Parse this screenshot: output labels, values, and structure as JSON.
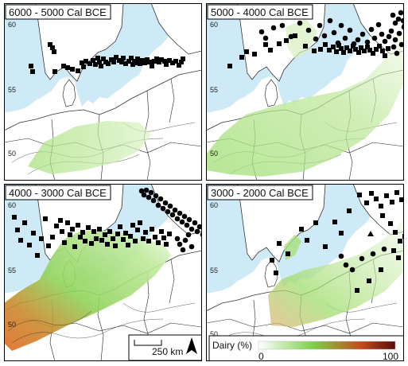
{
  "panels": [
    {
      "id": "p1",
      "period": "6000 - 5000 Cal BCE",
      "lat_labels": [
        "60",
        "55",
        "50"
      ],
      "squares": [
        [
          34,
          79
        ],
        [
          36,
          86
        ],
        [
          58,
          52
        ],
        [
          61,
          56
        ],
        [
          63,
          61
        ],
        [
          64,
          86
        ],
        [
          75,
          79
        ],
        [
          80,
          81
        ],
        [
          86,
          83
        ],
        [
          93,
          85
        ],
        [
          98,
          75
        ],
        [
          100,
          80
        ],
        [
          103,
          73
        ],
        [
          108,
          76
        ],
        [
          112,
          72
        ],
        [
          115,
          77
        ],
        [
          118,
          69
        ],
        [
          120,
          74
        ],
        [
          122,
          79
        ],
        [
          125,
          70
        ],
        [
          128,
          74
        ],
        [
          131,
          76
        ],
        [
          135,
          71
        ],
        [
          138,
          74
        ],
        [
          141,
          68
        ],
        [
          145,
          72
        ],
        [
          148,
          74
        ],
        [
          150,
          69
        ],
        [
          153,
          76
        ],
        [
          157,
          73
        ],
        [
          160,
          69
        ],
        [
          162,
          77
        ],
        [
          164,
          73
        ],
        [
          166,
          75
        ],
        [
          168,
          70
        ],
        [
          171,
          76
        ],
        [
          174,
          72
        ],
        [
          177,
          75
        ],
        [
          180,
          71
        ],
        [
          183,
          74
        ],
        [
          186,
          79
        ],
        [
          189,
          73
        ],
        [
          192,
          70
        ],
        [
          195,
          74
        ],
        [
          198,
          71
        ],
        [
          202,
          73
        ],
        [
          204,
          77
        ],
        [
          208,
          72
        ],
        [
          212,
          75
        ],
        [
          216,
          73
        ],
        [
          220,
          78
        ],
        [
          223,
          74
        ],
        [
          225,
          70
        ]
      ],
      "circles": [],
      "triangles": []
    },
    {
      "id": "p2",
      "period": "5000 - 4000 Cal BCE",
      "lat_labels": [
        "60",
        "55",
        "50"
      ],
      "squares": [
        [
          30,
          79
        ],
        [
          45,
          68
        ],
        [
          51,
          61
        ],
        [
          61,
          64
        ],
        [
          75,
          52
        ],
        [
          81,
          59
        ],
        [
          92,
          51
        ],
        [
          101,
          47
        ],
        [
          112,
          41
        ],
        [
          125,
          54
        ],
        [
          136,
          60
        ],
        [
          144,
          58
        ],
        [
          150,
          52
        ],
        [
          155,
          59
        ],
        [
          160,
          55
        ],
        [
          164,
          61
        ],
        [
          167,
          53
        ],
        [
          170,
          57
        ],
        [
          173,
          62
        ],
        [
          177,
          56
        ],
        [
          181,
          60
        ],
        [
          185,
          54
        ],
        [
          188,
          58
        ],
        [
          192,
          62
        ],
        [
          195,
          56
        ],
        [
          199,
          60
        ],
        [
          203,
          55
        ],
        [
          206,
          59
        ],
        [
          210,
          63
        ],
        [
          214,
          58
        ],
        [
          218,
          54
        ],
        [
          222,
          60
        ],
        [
          225,
          66
        ],
        [
          229,
          57
        ]
      ],
      "circles": [
        [
          70,
          36
        ],
        [
          75,
          44
        ],
        [
          85,
          31
        ],
        [
          96,
          28
        ],
        [
          107,
          42
        ],
        [
          118,
          25
        ],
        [
          129,
          34
        ],
        [
          138,
          45
        ],
        [
          143,
          28
        ],
        [
          149,
          41
        ],
        [
          156,
          22
        ],
        [
          161,
          37
        ],
        [
          166,
          50
        ],
        [
          170,
          28
        ],
        [
          175,
          44
        ],
        [
          181,
          34
        ],
        [
          186,
          51
        ],
        [
          191,
          46
        ],
        [
          197,
          39
        ],
        [
          203,
          49
        ],
        [
          208,
          33
        ],
        [
          212,
          44
        ],
        [
          217,
          27
        ],
        [
          221,
          39
        ],
        [
          225,
          48
        ],
        [
          230,
          42
        ],
        [
          233,
          35
        ],
        [
          236,
          55
        ],
        [
          238,
          46
        ],
        [
          240,
          63
        ],
        [
          243,
          38
        ],
        [
          246,
          52
        ],
        [
          249,
          30
        ],
        [
          235,
          15
        ],
        [
          238,
          25
        ],
        [
          242,
          20
        ],
        [
          245,
          12
        ],
        [
          248,
          22
        ],
        [
          250,
          28
        ]
      ],
      "triangles": []
    },
    {
      "id": "p3",
      "period": "4000 - 3000 Cal BCE",
      "lat_labels": [
        "60",
        "55",
        "50"
      ],
      "squares": [
        [
          13,
          42
        ],
        [
          17,
          58
        ],
        [
          21,
          71
        ],
        [
          26,
          49
        ],
        [
          32,
          77
        ],
        [
          37,
          62
        ],
        [
          42,
          90
        ],
        [
          47,
          69
        ],
        [
          52,
          44
        ],
        [
          56,
          78
        ],
        [
          61,
          67
        ],
        [
          66,
          53
        ],
        [
          71,
          46
        ],
        [
          73,
          60
        ],
        [
          76,
          74
        ],
        [
          80,
          49
        ],
        [
          83,
          64
        ],
        [
          86,
          57
        ],
        [
          89,
          79
        ],
        [
          93,
          52
        ],
        [
          96,
          67
        ],
        [
          99,
          61
        ],
        [
          102,
          72
        ],
        [
          106,
          55
        ],
        [
          110,
          75
        ],
        [
          113,
          60
        ],
        [
          116,
          69
        ],
        [
          120,
          57
        ],
        [
          123,
          71
        ],
        [
          127,
          64
        ],
        [
          130,
          76
        ],
        [
          133,
          60
        ],
        [
          137,
          69
        ],
        [
          140,
          78
        ],
        [
          143,
          63
        ],
        [
          146,
          54
        ],
        [
          150,
          70
        ],
        [
          153,
          62
        ],
        [
          156,
          77
        ],
        [
          159,
          66
        ],
        [
          162,
          52
        ],
        [
          165,
          72
        ],
        [
          168,
          58
        ],
        [
          171,
          49
        ],
        [
          175,
          69
        ],
        [
          178,
          61
        ],
        [
          182,
          72
        ],
        [
          186,
          57
        ],
        [
          190,
          67
        ],
        [
          194,
          74
        ],
        [
          198,
          60
        ],
        [
          201,
          68
        ],
        [
          204,
          76
        ],
        [
          208,
          63
        ]
      ],
      "circles": [
        [
          173,
          9
        ],
        [
          176,
          14
        ],
        [
          179,
          8
        ],
        [
          182,
          17
        ],
        [
          185,
          11
        ],
        [
          188,
          21
        ],
        [
          191,
          15
        ],
        [
          194,
          27
        ],
        [
          197,
          19
        ],
        [
          200,
          31
        ],
        [
          203,
          24
        ],
        [
          206,
          35
        ],
        [
          209,
          28
        ],
        [
          212,
          39
        ],
        [
          215,
          33
        ],
        [
          218,
          44
        ],
        [
          221,
          37
        ],
        [
          224,
          48
        ],
        [
          227,
          41
        ],
        [
          230,
          52
        ],
        [
          233,
          45
        ],
        [
          236,
          57
        ],
        [
          240,
          49
        ],
        [
          243,
          60
        ],
        [
          246,
          54
        ],
        [
          250,
          64
        ],
        [
          218,
          69
        ],
        [
          221,
          76
        ],
        [
          225,
          83
        ],
        [
          228,
          71
        ],
        [
          232,
          64
        ],
        [
          236,
          79
        ]
      ],
      "triangles": []
    },
    {
      "id": "p4",
      "period": "3000 - 2000 Cal BCE",
      "lat_labels": [
        "60",
        "55",
        "50"
      ],
      "squares": [
        [
          83,
          96
        ],
        [
          88,
          112
        ],
        [
          92,
          75
        ],
        [
          103,
          88
        ],
        [
          120,
          57
        ],
        [
          127,
          71
        ],
        [
          138,
          49
        ],
        [
          150,
          79
        ],
        [
          162,
          48
        ],
        [
          170,
          62
        ],
        [
          180,
          34
        ],
        [
          193,
          14
        ],
        [
          202,
          24
        ],
        [
          208,
          12
        ],
        [
          214,
          19
        ],
        [
          220,
          28
        ],
        [
          227,
          15
        ],
        [
          234,
          23
        ],
        [
          240,
          11
        ],
        [
          246,
          20
        ],
        [
          222,
          40
        ],
        [
          232,
          50
        ],
        [
          238,
          61
        ],
        [
          244,
          72
        ],
        [
          250,
          66
        ],
        [
          236,
          84
        ],
        [
          242,
          93
        ],
        [
          220,
          108
        ],
        [
          205,
          122
        ],
        [
          190,
          134
        ]
      ],
      "circles": [
        [
          170,
          91
        ],
        [
          176,
          102
        ],
        [
          184,
          108
        ],
        [
          196,
          94
        ],
        [
          210,
          88
        ],
        [
          224,
          82
        ]
      ],
      "triangles": [
        [
          207,
          63
        ]
      ]
    }
  ],
  "legend": {
    "title": "Dairy (%)",
    "min_label": "0",
    "max_label": "100",
    "colors": [
      "#ffffff",
      "#7dd04a",
      "#c44b1a",
      "#5a0a0a"
    ]
  },
  "scale_bar": {
    "label": "250 km"
  }
}
